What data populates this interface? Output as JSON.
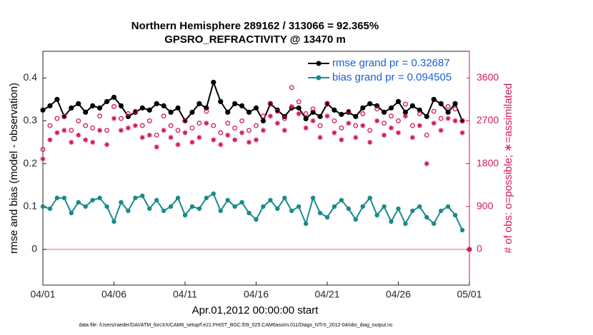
{
  "chart_data": {
    "type": "line",
    "title": "Northern Hemisphere 289162 / 313066 = 92.365%",
    "subtitle": "GPSRO_REFRACTIVITY @ 13470 m",
    "x_label": "Apr.01,2012 00:00:00 start",
    "y_label": "rmse and bias (model - observation)",
    "y2_label": "# of obs: o=possible; ∗=assimilated",
    "footnote": "data file: /Users/raeder/DAI/ATM_forcXX/CAM6_setup/f.e21.FHIST_BGC.f09_025.CAM6assim.011/Diags_NTrS_2012-04/obs_diag_output.nc",
    "xlim": [
      0,
      30
    ],
    "xticks": [
      {
        "value": 0,
        "label": "04/01"
      },
      {
        "value": 5,
        "label": "04/06"
      },
      {
        "value": 10,
        "label": "04/11"
      },
      {
        "value": 15,
        "label": "04/16"
      },
      {
        "value": 20,
        "label": "04/21"
      },
      {
        "value": 25,
        "label": "04/26"
      },
      {
        "value": 30,
        "label": "05/01"
      }
    ],
    "ylim": [
      -0.0833,
      0.4622
    ],
    "yticks": [
      0,
      0.1,
      0.2,
      0.3,
      0.4
    ],
    "y2lim": [
      -750,
      4160
    ],
    "y2ticks": [
      0,
      900,
      1800,
      2700,
      3600
    ],
    "legend": "upper right",
    "x": [
      0,
      0.5,
      1,
      1.5,
      2,
      2.5,
      3,
      3.5,
      4,
      4.5,
      5,
      5.5,
      6,
      6.5,
      7,
      7.5,
      8,
      8.5,
      9,
      9.5,
      10,
      10.5,
      11,
      11.5,
      12,
      12.5,
      13,
      13.5,
      14,
      14.5,
      15,
      15.5,
      16,
      16.5,
      17,
      17.5,
      18,
      18.5,
      19,
      19.5,
      20,
      20.5,
      21,
      21.5,
      22,
      22.5,
      23,
      23.5,
      24,
      24.5,
      25,
      25.5,
      26,
      26.5,
      27,
      27.5,
      28,
      28.5,
      29,
      29.5,
      30
    ],
    "series": [
      {
        "name": "rmse grand pr = 0.32687",
        "color": "#000000",
        "marker": "star",
        "line": true,
        "values": [
          0.325,
          0.335,
          0.35,
          0.31,
          0.33,
          0.34,
          0.32,
          0.335,
          0.33,
          0.345,
          0.355,
          0.335,
          0.31,
          0.32,
          0.33,
          0.325,
          0.34,
          0.335,
          0.32,
          0.33,
          0.3,
          0.32,
          0.34,
          0.33,
          0.39,
          0.345,
          0.32,
          0.34,
          0.335,
          0.32,
          0.33,
          0.3,
          0.34,
          0.325,
          0.31,
          0.33,
          0.33,
          0.305,
          0.32,
          0.31,
          0.34,
          0.325,
          0.315,
          0.32,
          0.31,
          0.33,
          0.34,
          0.335,
          0.32,
          0.33,
          0.345,
          0.32,
          0.335,
          0.325,
          0.31,
          0.35,
          0.34,
          0.32,
          0.34,
          0.3,
          null
        ]
      },
      {
        "name": "bias grand pr = 0.094505",
        "color": "#1a8a8a",
        "marker": "dot",
        "line": true,
        "values": [
          0.1,
          0.095,
          0.12,
          0.12,
          0.085,
          0.11,
          0.1,
          0.115,
          0.12,
          0.1,
          0.065,
          0.11,
          0.09,
          0.12,
          0.125,
          0.095,
          0.115,
          0.09,
          0.1,
          0.12,
          0.08,
          0.1,
          0.095,
          0.12,
          0.13,
          0.09,
          0.115,
          0.1,
          0.11,
          0.085,
          0.07,
          0.1,
          0.115,
          0.095,
          0.12,
          0.09,
          0.1,
          0.06,
          0.12,
          0.085,
          0.075,
          0.1,
          0.115,
          0.095,
          0.07,
          0.1,
          0.12,
          0.08,
          0.1,
          0.065,
          0.095,
          0.06,
          0.09,
          0.1,
          0.075,
          0.06,
          0.09,
          0.1,
          0.08,
          0.045,
          null
        ]
      },
      {
        "color": "#d4185a",
        "marker": "ring",
        "axis": "y2",
        "values": [
          2100,
          2600,
          2750,
          2800,
          2500,
          2700,
          2600,
          2550,
          2800,
          2500,
          3000,
          2750,
          2850,
          2900,
          2600,
          2700,
          2400,
          2800,
          2600,
          2500,
          2700,
          2550,
          2650,
          2900,
          2600,
          2450,
          2650,
          2550,
          2700,
          2500,
          2600,
          2800,
          3050,
          2900,
          2750,
          3400,
          3100,
          2850,
          2950,
          2600,
          3050,
          2700,
          2550,
          2900,
          2600,
          2850,
          2500,
          2950,
          2650,
          2800,
          2700,
          3050,
          2600,
          2850,
          2400,
          2900,
          2750,
          3000,
          2950,
          2700,
          0
        ]
      },
      {
        "color": "#d4185a",
        "marker": "asterisk",
        "axis": "y2",
        "values": [
          1900,
          2300,
          2450,
          2500,
          2250,
          2400,
          2300,
          2250,
          2500,
          2200,
          2750,
          2500,
          2550,
          2600,
          2350,
          2400,
          2150,
          2500,
          2350,
          2200,
          2450,
          2250,
          2350,
          2650,
          2300,
          2200,
          2400,
          2300,
          2450,
          2250,
          2300,
          2500,
          2800,
          2650,
          2500,
          3000,
          2850,
          2550,
          2700,
          2350,
          2800,
          2450,
          2300,
          2650,
          2350,
          2600,
          2250,
          2700,
          2400,
          2550,
          2450,
          2800,
          2350,
          2600,
          1800,
          2650,
          2500,
          2750,
          2700,
          2450,
          0
        ]
      }
    ]
  }
}
